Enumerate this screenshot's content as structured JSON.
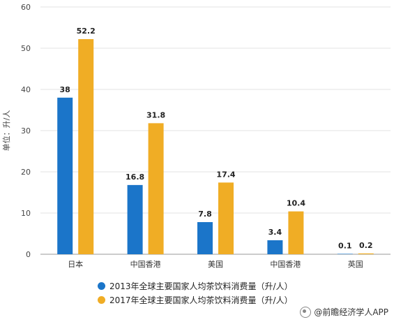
{
  "chart_data": {
    "type": "bar",
    "categories": [
      "日本",
      "中国香港",
      "美国",
      "中国香港",
      "英国"
    ],
    "series": [
      {
        "name": "2013年全球主要国家人均茶饮料消费量（升/人）",
        "values": [
          38,
          16.8,
          7.8,
          3.4,
          0.1
        ],
        "color": "#1b75c9"
      },
      {
        "name": "2017年全球主要国家人均茶饮料消费量（升/人）",
        "values": [
          52.2,
          31.8,
          17.4,
          10.4,
          0.2
        ],
        "color": "#f0ad25"
      }
    ],
    "ylabel": "单位：升/人",
    "ylim": [
      0,
      60
    ],
    "yticks": [
      0,
      10,
      20,
      30,
      40,
      50,
      60
    ],
    "grid": true,
    "legend": "bottom"
  },
  "source": "@前瞻经济学人APP"
}
